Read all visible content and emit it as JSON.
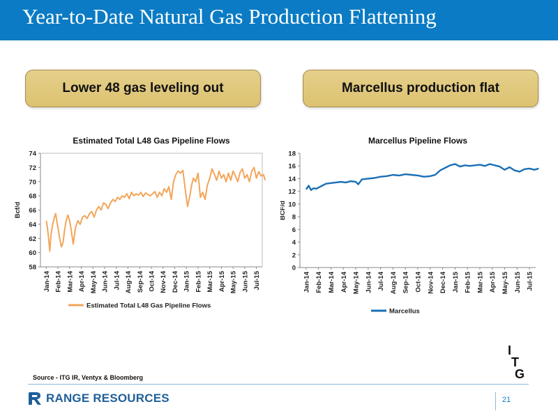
{
  "page": {
    "title": "Year-to-Date Natural Gas Production Flattening",
    "banner_left": "Lower 48 gas leveling out",
    "banner_right": "Marcellus production flat",
    "source": "Source - ITG IR, Ventyx & Bloomberg",
    "company": "RANGE RESOURCES",
    "page_number": "21",
    "itg_logo": [
      "I",
      "T",
      "G"
    ]
  },
  "colors": {
    "header": "#0a7bc4",
    "l48_series": "#f3a55a",
    "marcellus_series": "#1a6fb5"
  },
  "chart_data": [
    {
      "type": "line",
      "title": "Estimated Total L48 Gas Pipeline Flows",
      "xlabel": "",
      "ylabel": "Bcf/d",
      "ylim": [
        58,
        74
      ],
      "yticks": [
        58,
        60,
        62,
        64,
        66,
        68,
        70,
        72,
        74
      ],
      "grid": false,
      "legend": "bottom",
      "categories": [
        "Jan-14",
        "Feb-14",
        "Mar-14",
        "Apr-14",
        "May-14",
        "Jun-14",
        "Jul-14",
        "Aug-14",
        "Sep-14",
        "Oct-14",
        "Nov-14",
        "Dec-14",
        "Jan-15",
        "Feb-15",
        "Mar-15",
        "Apr-15",
        "May-15",
        "Jun-15",
        "Jul-15"
      ],
      "x": [
        0,
        0.1,
        0.2,
        0.3,
        0.4,
        0.55,
        0.7,
        0.8,
        0.9,
        1.0,
        1.15,
        1.3,
        1.45,
        1.55,
        1.7,
        1.85,
        2.0,
        2.15,
        2.3,
        2.5,
        2.7,
        2.9,
        3.1,
        3.3,
        3.5,
        3.7,
        3.9,
        4.1,
        4.3,
        4.5,
        4.7,
        4.9,
        5.1,
        5.3,
        5.5,
        5.7,
        5.9,
        6.1,
        6.3,
        6.5,
        6.7,
        6.9,
        7.1,
        7.3,
        7.5,
        7.7,
        7.9,
        8.1,
        8.3,
        8.5,
        8.7,
        8.9,
        9.1,
        9.3,
        9.5,
        9.7,
        9.9,
        10.1,
        10.3,
        10.5,
        10.7,
        10.9,
        11.1,
        11.3,
        11.5,
        11.7,
        11.9,
        12.1,
        12.3,
        12.45,
        12.6,
        12.8,
        13.0,
        13.2,
        13.4,
        13.6,
        13.8,
        14.0,
        14.2,
        14.4,
        14.6,
        14.8,
        15.0,
        15.2,
        15.4,
        15.6,
        15.8,
        16.0,
        16.2,
        16.4,
        16.6,
        16.8,
        17.0,
        17.2,
        17.4,
        17.6,
        17.8,
        18.0,
        18.2,
        18.4,
        18.6,
        18.75
      ],
      "series": [
        {
          "name": "Estimated Total L48 Gas Pipeline Flows",
          "values": [
            64.5,
            63.5,
            62.0,
            60.2,
            62.5,
            64.0,
            65.0,
            65.5,
            64.5,
            63.5,
            62.0,
            60.8,
            61.5,
            63.0,
            64.5,
            65.3,
            64.5,
            63.0,
            61.2,
            63.5,
            64.5,
            64.0,
            65.0,
            65.2,
            64.8,
            65.5,
            65.8,
            65.0,
            66.0,
            66.5,
            66.0,
            67.0,
            66.8,
            66.2,
            67.0,
            67.5,
            67.2,
            67.8,
            67.5,
            68.0,
            67.8,
            68.3,
            67.6,
            68.5,
            68.0,
            68.3,
            68.1,
            68.5,
            67.9,
            68.4,
            68.2,
            68.0,
            68.3,
            68.6,
            67.8,
            68.5,
            68.0,
            69.0,
            68.5,
            69.3,
            67.5,
            70.0,
            71.0,
            71.5,
            71.2,
            71.6,
            69.0,
            66.5,
            68.0,
            69.5,
            70.5,
            70.0,
            71.2,
            67.8,
            68.5,
            67.5,
            69.5,
            70.5,
            71.8,
            71.0,
            70.2,
            71.5,
            70.5,
            71.0,
            70.0,
            71.2,
            70.2,
            71.5,
            70.8,
            70.0,
            71.3,
            71.8,
            70.5,
            71.0,
            70.0,
            71.5,
            72.0,
            70.5,
            71.4,
            70.8,
            71.0,
            70.2
          ]
        }
      ]
    },
    {
      "type": "line",
      "title": "Marcellus Pipeline Flows",
      "xlabel": "",
      "ylabel": "BCF/d",
      "ylim": [
        0,
        18
      ],
      "yticks": [
        0,
        2,
        4,
        6,
        8,
        10,
        12,
        14,
        16,
        18
      ],
      "grid": false,
      "legend": "bottom",
      "categories": [
        "Jan-14",
        "Feb-14",
        "Mar-14",
        "Apr-14",
        "May-14",
        "Jun-14",
        "Jul-14",
        "Aug-14",
        "Sep-14",
        "Oct-14",
        "Nov-14",
        "Dec-14",
        "Jan-15",
        "Feb-15",
        "Mar-15",
        "Apr-15",
        "May-15",
        "Jun-15",
        "Jul-15"
      ],
      "x": [
        0,
        0.2,
        0.4,
        0.6,
        0.8,
        1.0,
        1.3,
        1.6,
        2.0,
        2.4,
        2.8,
        3.2,
        3.6,
        4.0,
        4.2,
        4.5,
        5.0,
        5.5,
        6.0,
        6.5,
        7.0,
        7.5,
        8.0,
        8.5,
        9.0,
        9.5,
        10.0,
        10.4,
        10.8,
        11.2,
        11.6,
        12.0,
        12.4,
        12.8,
        13.2,
        13.6,
        14.0,
        14.4,
        14.8,
        15.2,
        15.6,
        16.0,
        16.4,
        16.8,
        17.2,
        17.6,
        18.0,
        18.4,
        18.75
      ],
      "series": [
        {
          "name": "Marcellus",
          "values": [
            12.3,
            12.9,
            12.2,
            12.5,
            12.4,
            12.6,
            12.9,
            13.2,
            13.3,
            13.4,
            13.5,
            13.4,
            13.6,
            13.5,
            13.1,
            13.9,
            14.0,
            14.1,
            14.3,
            14.4,
            14.6,
            14.5,
            14.7,
            14.6,
            14.5,
            14.3,
            14.4,
            14.6,
            15.3,
            15.7,
            16.1,
            16.3,
            15.9,
            16.1,
            16.0,
            16.1,
            16.2,
            16.0,
            16.3,
            16.1,
            15.9,
            15.4,
            15.8,
            15.3,
            15.1,
            15.5,
            15.6,
            15.4,
            15.6
          ]
        }
      ]
    }
  ]
}
